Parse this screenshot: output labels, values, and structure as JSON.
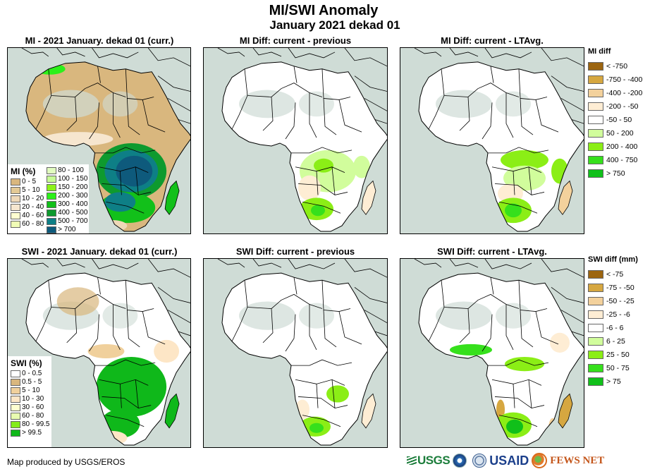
{
  "header": {
    "title": "MI/SWI Anomaly",
    "subtitle": "January 2021 dekad 01"
  },
  "colors": {
    "ocean": "#cfdcd6",
    "border": "#000000"
  },
  "panels": [
    {
      "id": "mi-current",
      "title": "MI - 2021 January. dekad 01 (curr.)"
    },
    {
      "id": "mi-diff-prev",
      "title": "MI Diff: current - previous"
    },
    {
      "id": "mi-diff-lta",
      "title": "MI Diff: current - LTAvg."
    },
    {
      "id": "swi-current",
      "title": "SWI - 2021 January. dekad 01 (curr.)"
    },
    {
      "id": "swi-diff-prev",
      "title": "SWI Diff: current - previous"
    },
    {
      "id": "swi-diff-lta",
      "title": "SWI Diff: current - LTAvg."
    }
  ],
  "legends": {
    "mi": {
      "title": "MI (%)",
      "items": [
        {
          "label": "0 - 5",
          "color": "#d9b77e"
        },
        {
          "label": "5 - 10",
          "color": "#e3c995"
        },
        {
          "label": "10 - 20",
          "color": "#eed8b8"
        },
        {
          "label": "20 - 40",
          "color": "#f6e6cf"
        },
        {
          "label": "40 - 60",
          "color": "#fefed0"
        },
        {
          "label": "60 - 80",
          "color": "#f0fdb6"
        },
        {
          "label": "80 - 100",
          "color": "#e1fcbf"
        },
        {
          "label": "100 - 150",
          "color": "#c7fc97"
        },
        {
          "label": "150 - 200",
          "color": "#8cf21a"
        },
        {
          "label": "200 - 300",
          "color": "#2cf01a"
        },
        {
          "label": "300 - 400",
          "color": "#12c01a"
        },
        {
          "label": "400 - 500",
          "color": "#0e9a2e"
        },
        {
          "label": "500 - 700",
          "color": "#0e7f86"
        },
        {
          "label": "> 700",
          "color": "#0e5a7c"
        }
      ]
    },
    "swi": {
      "title": "SWI (%)",
      "items": [
        {
          "label": "0 - 0.5",
          "color": "#ffffff"
        },
        {
          "label": "0.5 - 5",
          "color": "#d9b77e"
        },
        {
          "label": "5 - 10",
          "color": "#f0d09c"
        },
        {
          "label": "10 - 30",
          "color": "#fde6c6"
        },
        {
          "label": "30 - 60",
          "color": "#fefed0"
        },
        {
          "label": "60 - 80",
          "color": "#e8fcb0"
        },
        {
          "label": "80 - 99.5",
          "color": "#84ec1a"
        },
        {
          "label": "> 99.5",
          "color": "#0fb81a"
        }
      ]
    },
    "mi_diff": {
      "title": "MI diff",
      "items": [
        {
          "label": "< -750",
          "color": "#9c6510"
        },
        {
          "label": "-750 - -400",
          "color": "#d6a740"
        },
        {
          "label": "-400 - -200",
          "color": "#f3d19c"
        },
        {
          "label": "-200 - -50",
          "color": "#feedd4"
        },
        {
          "label": "-50 - 50",
          "color": "#ffffff"
        },
        {
          "label": "50 - 200",
          "color": "#d1fd9c"
        },
        {
          "label": "200 - 400",
          "color": "#8bee16"
        },
        {
          "label": "400 - 750",
          "color": "#36e01c"
        },
        {
          "label": "> 750",
          "color": "#10c01a"
        }
      ]
    },
    "swi_diff": {
      "title": "SWI diff (mm)",
      "items": [
        {
          "label": "< -75",
          "color": "#9c6510"
        },
        {
          "label": "-75 - -50",
          "color": "#d6a740"
        },
        {
          "label": "-50 - -25",
          "color": "#f3d19c"
        },
        {
          "label": "-25 - -6",
          "color": "#feedd4"
        },
        {
          "label": "-6 - 6",
          "color": "#ffffff"
        },
        {
          "label": "6 - 25",
          "color": "#d1fd9c"
        },
        {
          "label": "25 - 50",
          "color": "#8bee16"
        },
        {
          "label": "50 - 75",
          "color": "#36e01c"
        },
        {
          "label": "> 75",
          "color": "#10c01a"
        }
      ]
    }
  },
  "footer": {
    "credit": "Map produced by USGS/EROS",
    "logos": [
      {
        "name": "USGS",
        "text": "USGS"
      },
      {
        "name": "NOAA",
        "text": ""
      },
      {
        "name": "USAID seal",
        "text": ""
      },
      {
        "name": "USAID",
        "text": "USAID"
      },
      {
        "name": "FEWS NET",
        "text": "FEWS NET"
      }
    ]
  }
}
